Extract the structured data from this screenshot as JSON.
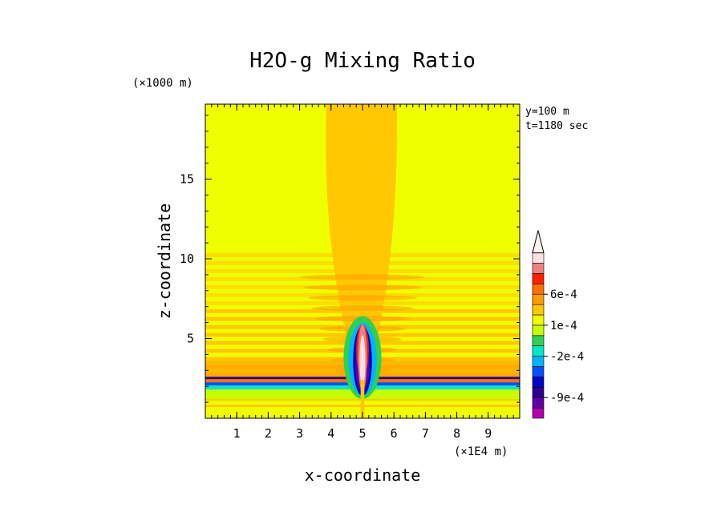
{
  "chart_data": {
    "type": "heatmap",
    "title": "H2O-g Mixing Ratio",
    "xlabel": "x-coordinate",
    "ylabel": "z-coordinate",
    "x_unit": "(×1E4 m)",
    "y_unit": "(×1000 m)",
    "info_lines": [
      "y=100 m",
      "t=1180 sec"
    ],
    "xlim": [
      0,
      10
    ],
    "ylim": [
      0,
      19.7
    ],
    "x_ticks": [
      1,
      2,
      3,
      4,
      5,
      6,
      7,
      8,
      9
    ],
    "y_ticks": [
      5,
      10,
      15
    ],
    "grid": false,
    "colorbar": {
      "colors": [
        "#b000b0",
        "#6000a8",
        "#2c0090",
        "#0000c8",
        "#0050ff",
        "#00b4ff",
        "#00e8c8",
        "#30d050",
        "#c8ff00",
        "#f0ff00",
        "#ffc800",
        "#ff9c00",
        "#ff7000",
        "#ff2000",
        "#f08080",
        "#ffe0e0"
      ],
      "labels": [
        {
          "text": "-9e-4",
          "level": 2
        },
        {
          "text": "-2e-4",
          "level": 6
        },
        {
          "text": "1e-4",
          "level": 9
        },
        {
          "text": "6e-4",
          "level": 12
        }
      ],
      "arrow_top": true
    },
    "field_description_values": {
      "background": "#f0ff00",
      "plume_center_x": 5.0,
      "plume_top_z": 19.7,
      "core_bottom_z": 2.5,
      "core_top_z": 4.9,
      "layer_band_z": [
        2.2,
        2.6
      ]
    }
  }
}
